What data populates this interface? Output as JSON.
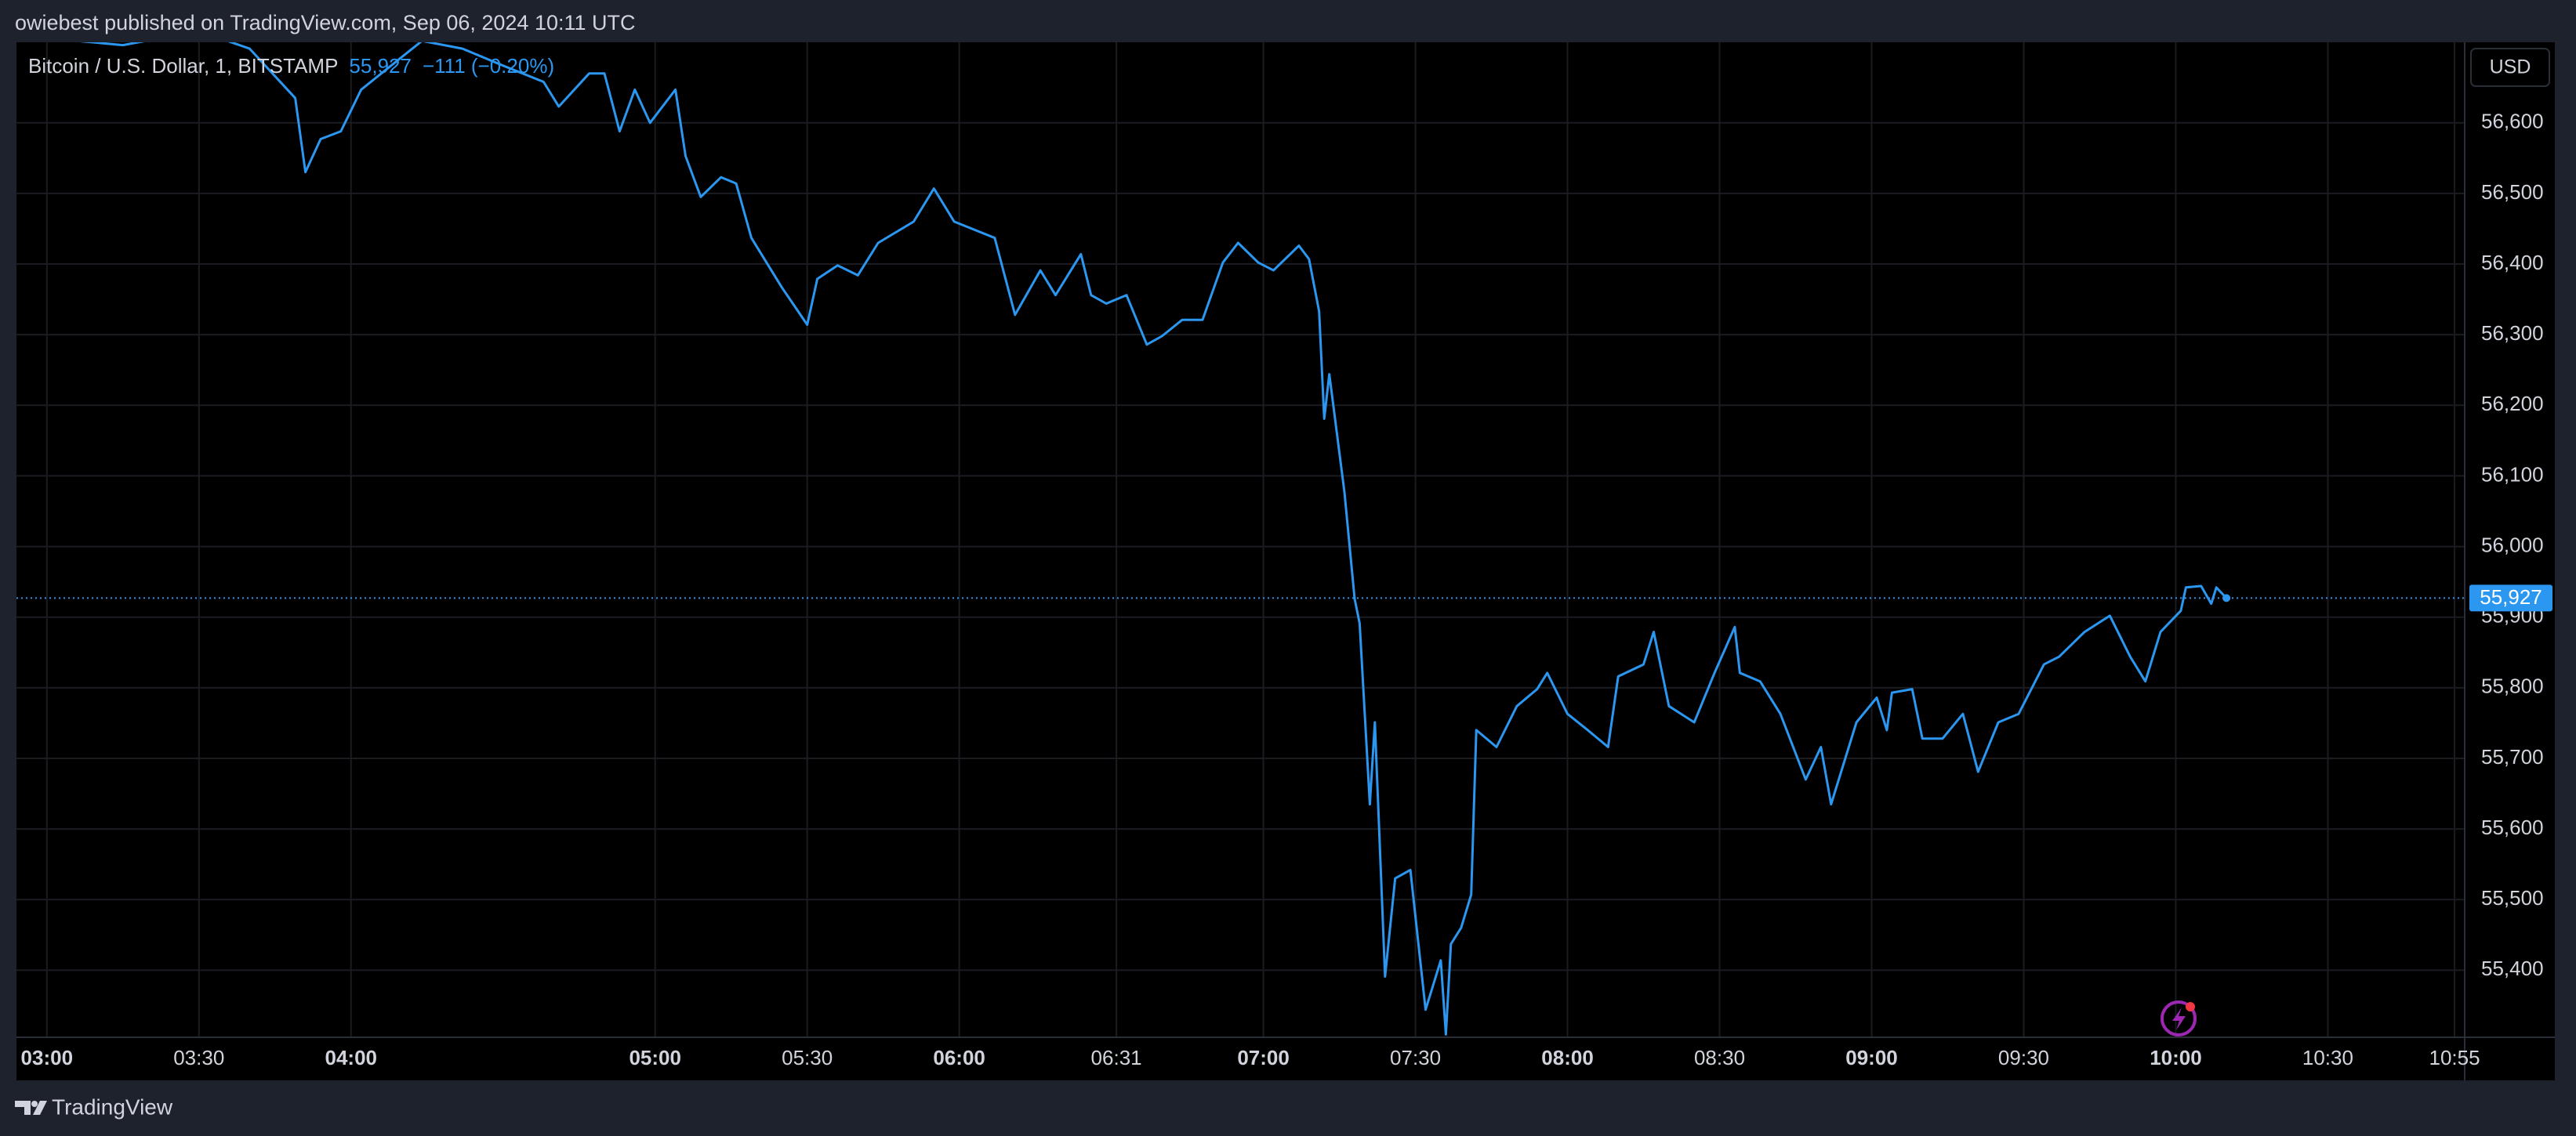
{
  "header": {
    "text": "owiebest published on TradingView.com, Sep 06, 2024 10:11 UTC"
  },
  "footer": {
    "brand": "TradingView"
  },
  "chart_data": {
    "type": "line",
    "legend": {
      "symbol": "Bitcoin / U.S. Dollar, 1, BITSTAMP",
      "last": "55,927",
      "change": "−111 (−0.20%)"
    },
    "currency": "USD",
    "price_label": "55,927",
    "x": [
      "03:00",
      "03:15",
      "03:30",
      "03:40",
      "03:49",
      "03:51",
      "03:54",
      "03:58",
      "04:02",
      "04:06",
      "04:14",
      "04:22",
      "04:30",
      "04:38",
      "04:41",
      "04:47",
      "04:50",
      "04:53",
      "04:56",
      "04:59",
      "05:04",
      "05:06",
      "05:09",
      "05:13",
      "05:16",
      "05:19",
      "05:25",
      "05:30",
      "05:32",
      "05:36",
      "05:40",
      "05:44",
      "05:51",
      "05:55",
      "05:59",
      "06:07",
      "06:11",
      "06:16",
      "06:19",
      "06:24",
      "06:26",
      "06:29",
      "06:33",
      "06:37",
      "06:40",
      "06:44",
      "06:48",
      "06:52",
      "06:55",
      "06:59",
      "07:02",
      "07:07",
      "07:09",
      "07:11",
      "07:12",
      "07:13",
      "07:16",
      "07:18",
      "07:19",
      "07:21",
      "07:22",
      "07:24",
      "07:26",
      "07:29",
      "07:32",
      "07:35",
      "07:36",
      "07:37",
      "07:39",
      "07:41",
      "07:42",
      "07:46",
      "07:50",
      "07:54",
      "07:56",
      "08:00",
      "08:04",
      "08:08",
      "08:10",
      "08:15",
      "08:17",
      "08:20",
      "08:25",
      "08:29",
      "08:33",
      "08:34",
      "08:38",
      "08:42",
      "08:47",
      "08:50",
      "08:52",
      "08:57",
      "09:01",
      "09:03",
      "09:04",
      "09:08",
      "09:10",
      "09:14",
      "09:18",
      "09:21",
      "09:25",
      "09:29",
      "09:34",
      "09:37",
      "09:42",
      "09:47",
      "09:51",
      "09:54",
      "09:57",
      "10:01",
      "10:02",
      "10:05",
      "10:07",
      "10:08",
      "10:10"
    ],
    "series": [
      {
        "name": "BTCUSD",
        "color": "#2b97f0",
        "values": [
          56720,
          56710,
          56730,
          56705,
          56635,
          56530,
          56577,
          56588,
          56647,
          56670,
          56716,
          56705,
          56681,
          56658,
          56623,
          56670,
          56670,
          56588,
          56647,
          56600,
          56647,
          56553,
          56495,
          56523,
          56514,
          56437,
          56367,
          56314,
          56379,
          56398,
          56384,
          56430,
          56460,
          56507,
          56460,
          56437,
          56328,
          56391,
          56356,
          56414,
          56356,
          56344,
          56356,
          56286,
          56298,
          56321,
          56321,
          56402,
          56430,
          56402,
          56391,
          56426,
          56407,
          56333,
          56181,
          56244,
          56077,
          55926,
          55891,
          55635,
          55751,
          55391,
          55530,
          55542,
          55344,
          55414,
          55309,
          55437,
          55460,
          55507,
          55740,
          55716,
          55774,
          55798,
          55821,
          55763,
          55740,
          55716,
          55816,
          55833,
          55879,
          55774,
          55751,
          55821,
          55886,
          55821,
          55809,
          55763,
          55670,
          55716,
          55635,
          55751,
          55786,
          55740,
          55793,
          55798,
          55728,
          55728,
          55763,
          55681,
          55751,
          55763,
          55833,
          55844,
          55879,
          55902,
          55844,
          55809,
          55879,
          55909,
          55942,
          55944,
          55919,
          55942,
          55927
        ]
      }
    ],
    "xlim": [
      "02:54",
      "10:57"
    ],
    "xticks": [
      "03:00",
      "03:30",
      "04:00",
      "05:00",
      "05:30",
      "06:00",
      "06:31",
      "07:00",
      "07:30",
      "08:00",
      "08:30",
      "09:00",
      "09:30",
      "10:00",
      "10:30",
      "10:55"
    ],
    "ylim": [
      55305,
      56714
    ],
    "yticks": [
      {
        "value": 55400,
        "label": "55,400"
      },
      {
        "value": 55500,
        "label": "55,500"
      },
      {
        "value": 55600,
        "label": "55,600"
      },
      {
        "value": 55700,
        "label": "55,700"
      },
      {
        "value": 55800,
        "label": "55,800"
      },
      {
        "value": 55900,
        "label": "55,900"
      },
      {
        "value": 56000,
        "label": "56,000"
      },
      {
        "value": 56100,
        "label": "56,100"
      },
      {
        "value": 56200,
        "label": "56,200"
      },
      {
        "value": 56300,
        "label": "56,300"
      },
      {
        "value": 56400,
        "label": "56,400"
      },
      {
        "value": 56500,
        "label": "56,500"
      },
      {
        "value": 56600,
        "label": "56,600"
      }
    ],
    "grid": true
  }
}
